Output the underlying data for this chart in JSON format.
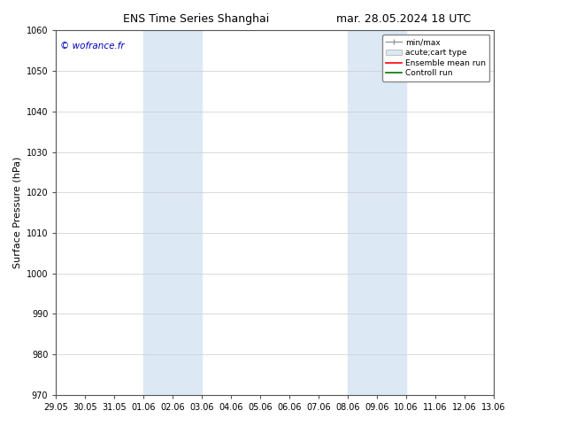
{
  "title_left": "ENS Time Series Shanghai",
  "title_right": "mar. 28.05.2024 18 UTC",
  "ylabel": "Surface Pressure (hPa)",
  "ylim": [
    970,
    1060
  ],
  "yticks": [
    970,
    980,
    990,
    1000,
    1010,
    1020,
    1030,
    1040,
    1050,
    1060
  ],
  "xtick_labels": [
    "29.05",
    "30.05",
    "31.05",
    "01.06",
    "02.06",
    "03.06",
    "04.06",
    "05.06",
    "06.06",
    "07.06",
    "08.06",
    "09.06",
    "10.06",
    "11.06",
    "12.06",
    "13.06"
  ],
  "background_color": "#ffffff",
  "plot_bg_color": "#ffffff",
  "shaded_regions": [
    {
      "x_start": "01.06",
      "x_end": "03.06",
      "color": "#dce9f5"
    },
    {
      "x_start": "08.06",
      "x_end": "10.06",
      "color": "#dce9f5"
    }
  ],
  "watermark_text": "© wofrance.fr",
  "watermark_color": "#0000bb",
  "legend_entries": [
    {
      "label": "min/max",
      "color": "#999999",
      "style": "line_with_bar"
    },
    {
      "label": "acute;cart type",
      "color": "#aaaaaa",
      "style": "filled_bar"
    },
    {
      "label": "Ensemble mean run",
      "color": "#ff0000",
      "style": "line"
    },
    {
      "label": "Controll run",
      "color": "#007700",
      "style": "line"
    }
  ],
  "grid_color": "#cccccc",
  "tick_fontsize": 7,
  "label_fontsize": 8,
  "title_fontsize": 9
}
